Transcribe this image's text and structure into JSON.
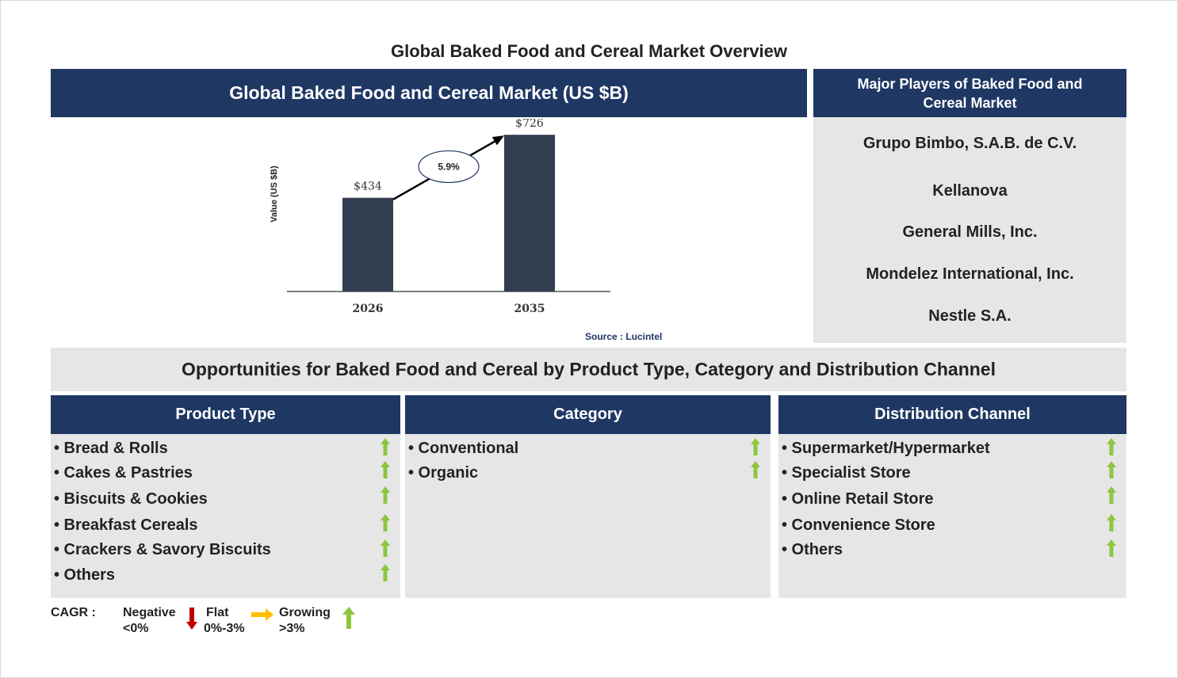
{
  "page": {
    "title": "Global Baked Food and Cereal Market Overview"
  },
  "chart_panel": {
    "header": "Global Baked Food and Cereal Market (US $B)",
    "source": "Source : Lucintel"
  },
  "chart_data": {
    "type": "bar",
    "categories": [
      "2026",
      "2035"
    ],
    "values": [
      434,
      726
    ],
    "value_labels": [
      "$434",
      "$726"
    ],
    "ylabel": "Value (US $B)",
    "ylim": [
      0,
      800
    ],
    "cagr_label": "5.9%",
    "bar_color": "#323d4f",
    "grid": false
  },
  "players": {
    "header": "Major Players of Baked Food and Cereal Market",
    "items": [
      "Grupo Bimbo, S.A.B. de C.V.",
      "Kellanova",
      "General Mills, Inc.",
      "Mondelez International, Inc.",
      "Nestle S.A."
    ]
  },
  "opportunities": {
    "banner": "Opportunities for Baked Food and Cereal by Product Type, Category and Distribution Channel",
    "columns": [
      {
        "header": "Product Type",
        "items": [
          "• Bread & Rolls",
          "• Cakes & Pastries",
          "• Biscuits & Cookies",
          "• Breakfast Cereals",
          "• Crackers & Savory Biscuits",
          "• Others"
        ],
        "trend": [
          "growing",
          "growing",
          "growing",
          "growing",
          "growing",
          "growing"
        ]
      },
      {
        "header": "Category",
        "items": [
          "• Conventional",
          "• Organic"
        ],
        "trend": [
          "growing",
          "growing"
        ]
      },
      {
        "header": "Distribution Channel",
        "items": [
          "• Supermarket/Hypermarket",
          "• Specialist Store",
          "• Online Retail Store",
          "• Convenience Store",
          "• Others"
        ],
        "trend": [
          "growing",
          "growing",
          "growing",
          "growing",
          "growing"
        ]
      }
    ]
  },
  "legend": {
    "label": "CAGR  :",
    "negative": [
      "Negative",
      "<0%"
    ],
    "flat": [
      "Flat",
      "0%-3%"
    ],
    "growing": [
      "Growing",
      ">3%"
    ]
  },
  "colors": {
    "navy": "#1f3763",
    "panel_grey": "#e6e6e6",
    "growing_arrow": "#8dc63f",
    "negative_arrow": "#c00000",
    "flat_arrow": "#ffc000"
  },
  "icons": {
    "growing": "up-arrow-icon",
    "negative": "down-arrow-icon",
    "flat": "right-arrow-icon"
  }
}
